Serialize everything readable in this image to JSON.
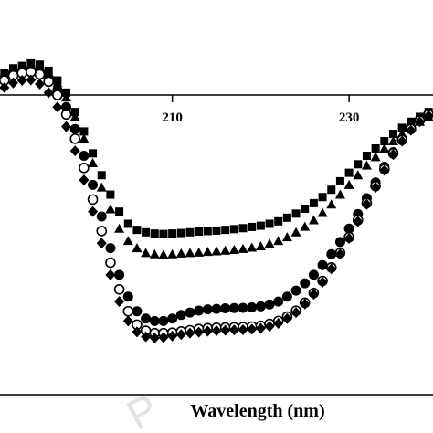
{
  "chart_data": {
    "type": "scatter",
    "title": "",
    "xlabel": "Wavelength (nm)",
    "ylabel": "",
    "x_ticks": [
      210,
      230
    ],
    "xlim": [
      190.5,
      239.5
    ],
    "ylim": [
      -12,
      1.5
    ],
    "zero_line": true,
    "grid": false,
    "legend": "none",
    "colors": {
      "marker": "#000000",
      "axis": "#000000",
      "background": "#ffffff",
      "watermark": "#e3e3e3"
    },
    "series": [
      {
        "marker": "square",
        "x": [
          191,
          192,
          193,
          194,
          195,
          196,
          197,
          198,
          199,
          200,
          201,
          202,
          203,
          204,
          205,
          206,
          207,
          208,
          209,
          210,
          211,
          212,
          213,
          214,
          215,
          216,
          217,
          218,
          219,
          220,
          221,
          222,
          223,
          224,
          225,
          226,
          227,
          228,
          229,
          230,
          231,
          232,
          233,
          234,
          235,
          236,
          237,
          238,
          239
        ],
        "y": [
          0.9,
          1.1,
          1.2,
          1.3,
          1.25,
          1.0,
          0.6,
          0.1,
          -0.7,
          -1.5,
          -2.4,
          -3.3,
          -4.1,
          -4.8,
          -5.3,
          -5.55,
          -5.65,
          -5.7,
          -5.72,
          -5.7,
          -5.68,
          -5.65,
          -5.62,
          -5.6,
          -5.58,
          -5.55,
          -5.52,
          -5.48,
          -5.43,
          -5.38,
          -5.3,
          -5.2,
          -5.05,
          -4.88,
          -4.68,
          -4.45,
          -4.2,
          -3.9,
          -3.55,
          -3.2,
          -2.85,
          -2.5,
          -2.2,
          -1.9,
          -1.6,
          -1.35,
          -1.1,
          -0.9,
          -0.7
        ]
      },
      {
        "marker": "triangle",
        "x": [
          191,
          192,
          193,
          194,
          195,
          196,
          197,
          198,
          199,
          200,
          201,
          202,
          203,
          204,
          205,
          206,
          207,
          208,
          209,
          210,
          211,
          212,
          213,
          214,
          215,
          216,
          217,
          218,
          219,
          220,
          221,
          222,
          223,
          224,
          225,
          226,
          227,
          228,
          229,
          230,
          231,
          232,
          233,
          234,
          235,
          236,
          237,
          238,
          239
        ],
        "y": [
          0.8,
          1.0,
          1.1,
          1.15,
          1.1,
          0.9,
          0.5,
          -0.1,
          -0.9,
          -1.8,
          -2.8,
          -3.8,
          -4.7,
          -5.5,
          -6.0,
          -6.3,
          -6.5,
          -6.55,
          -6.57,
          -6.55,
          -6.52,
          -6.5,
          -6.48,
          -6.45,
          -6.43,
          -6.4,
          -6.37,
          -6.33,
          -6.28,
          -6.22,
          -6.12,
          -6.0,
          -5.85,
          -5.65,
          -5.42,
          -5.15,
          -4.85,
          -4.5,
          -4.1,
          -3.7,
          -3.3,
          -2.9,
          -2.55,
          -2.2,
          -1.9,
          -1.6,
          -1.35,
          -1.1,
          -0.9
        ]
      },
      {
        "marker": "circle-filled",
        "x": [
          191,
          192,
          193,
          194,
          195,
          196,
          197,
          198,
          199,
          200,
          201,
          202,
          203,
          204,
          205,
          206,
          207,
          208,
          209,
          210,
          211,
          212,
          213,
          214,
          215,
          216,
          217,
          218,
          219,
          220,
          221,
          222,
          223,
          224,
          225,
          226,
          227,
          228,
          229,
          230,
          231,
          232,
          233,
          234,
          235,
          236,
          237,
          238,
          239
        ],
        "y": [
          0.7,
          0.9,
          1.0,
          1.05,
          0.95,
          0.7,
          0.2,
          -0.5,
          -1.4,
          -2.5,
          -3.7,
          -5.0,
          -6.3,
          -7.4,
          -8.3,
          -8.9,
          -9.2,
          -9.3,
          -9.3,
          -9.2,
          -9.05,
          -8.95,
          -8.87,
          -8.82,
          -8.8,
          -8.78,
          -8.77,
          -8.76,
          -8.74,
          -8.7,
          -8.62,
          -8.5,
          -8.3,
          -8.05,
          -7.75,
          -7.4,
          -7.0,
          -6.55,
          -6.05,
          -5.5,
          -4.9,
          -4.25,
          -3.6,
          -2.95,
          -2.35,
          -1.8,
          -1.35,
          -1.0,
          -0.75
        ]
      },
      {
        "marker": "circle-open",
        "x": [
          191,
          192,
          193,
          194,
          195,
          196,
          197,
          198,
          199,
          200,
          201,
          202,
          203,
          204,
          205,
          206,
          207,
          208,
          209,
          210,
          211,
          212,
          213,
          214,
          215,
          216,
          217,
          218,
          219,
          220,
          221,
          222,
          223,
          224,
          225,
          226,
          227,
          228,
          229,
          230,
          231,
          232,
          233,
          234,
          235,
          236,
          237,
          238,
          239
        ],
        "y": [
          0.6,
          0.8,
          0.9,
          0.95,
          0.85,
          0.55,
          0.0,
          -0.8,
          -1.8,
          -3.0,
          -4.3,
          -5.6,
          -6.9,
          -8.0,
          -8.9,
          -9.45,
          -9.7,
          -9.8,
          -9.8,
          -9.78,
          -9.73,
          -9.68,
          -9.63,
          -9.6,
          -9.58,
          -9.57,
          -9.56,
          -9.55,
          -9.53,
          -9.5,
          -9.42,
          -9.3,
          -9.12,
          -8.88,
          -8.55,
          -8.15,
          -7.65,
          -7.1,
          -6.5,
          -5.85,
          -5.15,
          -4.45,
          -3.75,
          -3.05,
          -2.4,
          -1.85,
          -1.4,
          -1.05,
          -0.8
        ]
      },
      {
        "marker": "diamond",
        "x": [
          191,
          192,
          193,
          194,
          195,
          196,
          197,
          198,
          199,
          200,
          201,
          202,
          203,
          204,
          205,
          206,
          207,
          208,
          209,
          210,
          211,
          212,
          213,
          214,
          215,
          216,
          217,
          218,
          219,
          220,
          221,
          222,
          223,
          224,
          225,
          226,
          227,
          228,
          229,
          230,
          231,
          232,
          233,
          234,
          235,
          236,
          237,
          238,
          239
        ],
        "y": [
          0.3,
          0.5,
          0.6,
          0.62,
          0.45,
          0.1,
          -0.5,
          -1.3,
          -2.3,
          -3.5,
          -4.8,
          -6.1,
          -7.4,
          -8.5,
          -9.3,
          -9.75,
          -9.95,
          -10.0,
          -9.98,
          -9.92,
          -9.86,
          -9.8,
          -9.76,
          -9.72,
          -9.7,
          -9.68,
          -9.67,
          -9.66,
          -9.64,
          -9.6,
          -9.52,
          -9.4,
          -9.2,
          -8.95,
          -8.6,
          -8.2,
          -7.7,
          -7.15,
          -6.55,
          -5.9,
          -5.2,
          -4.5,
          -3.8,
          -3.1,
          -2.45,
          -1.9,
          -1.45,
          -1.1,
          -0.85
        ]
      }
    ]
  },
  "watermark_text": "P"
}
